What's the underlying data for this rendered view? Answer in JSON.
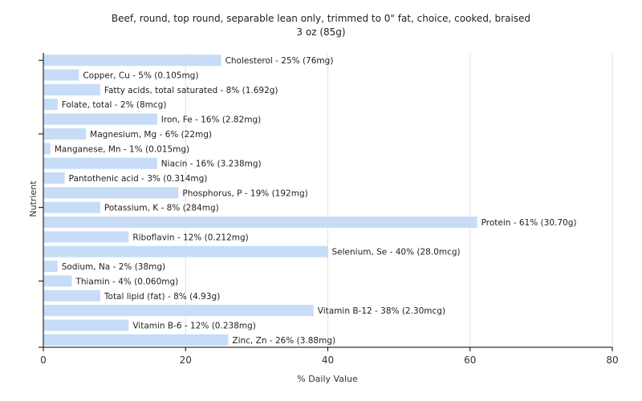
{
  "chart_data": {
    "type": "bar",
    "orientation": "horizontal",
    "title": "Beef, round, top round, separable lean only, trimmed to 0\" fat, choice, cooked, braised",
    "subtitle": "3 oz (85g)",
    "xlabel": "% Daily Value",
    "ylabel": "Nutrient",
    "xlim": [
      0,
      80
    ],
    "xticks": [
      0,
      20,
      40,
      60,
      80
    ],
    "grid": true,
    "bar_color": "#c6dcf7",
    "categories": [
      "Cholesterol",
      "Copper, Cu",
      "Fatty acids, total saturated",
      "Folate, total",
      "Iron, Fe",
      "Magnesium, Mg",
      "Manganese, Mn",
      "Niacin",
      "Pantothenic acid",
      "Phosphorus, P",
      "Potassium, K",
      "Protein",
      "Riboflavin",
      "Selenium, Se",
      "Sodium, Na",
      "Thiamin",
      "Total lipid (fat)",
      "Vitamin B-12",
      "Vitamin B-6",
      "Zinc, Zn"
    ],
    "values": [
      25,
      5,
      8,
      2,
      16,
      6,
      1,
      16,
      3,
      19,
      8,
      61,
      12,
      40,
      2,
      4,
      8,
      38,
      12,
      26
    ],
    "labels": [
      "Cholesterol - 25% (76mg)",
      "Copper, Cu - 5% (0.105mg)",
      "Fatty acids, total saturated - 8% (1.692g)",
      "Folate, total - 2% (8mcg)",
      "Iron, Fe - 16% (2.82mg)",
      "Magnesium, Mg - 6% (22mg)",
      "Manganese, Mn - 1% (0.015mg)",
      "Niacin - 16% (3.238mg)",
      "Pantothenic acid - 3% (0.314mg)",
      "Phosphorus, P - 19% (192mg)",
      "Potassium, K - 8% (284mg)",
      "Protein - 61% (30.70g)",
      "Riboflavin - 12% (0.212mg)",
      "Selenium, Se - 40% (28.0mcg)",
      "Sodium, Na - 2% (38mg)",
      "Thiamin - 4% (0.060mg)",
      "Total lipid (fat) - 8% (4.93g)",
      "Vitamin B-12 - 38% (2.30mcg)",
      "Vitamin B-6 - 12% (0.238mg)",
      "Zinc, Zn - 26% (3.88mg)"
    ]
  }
}
